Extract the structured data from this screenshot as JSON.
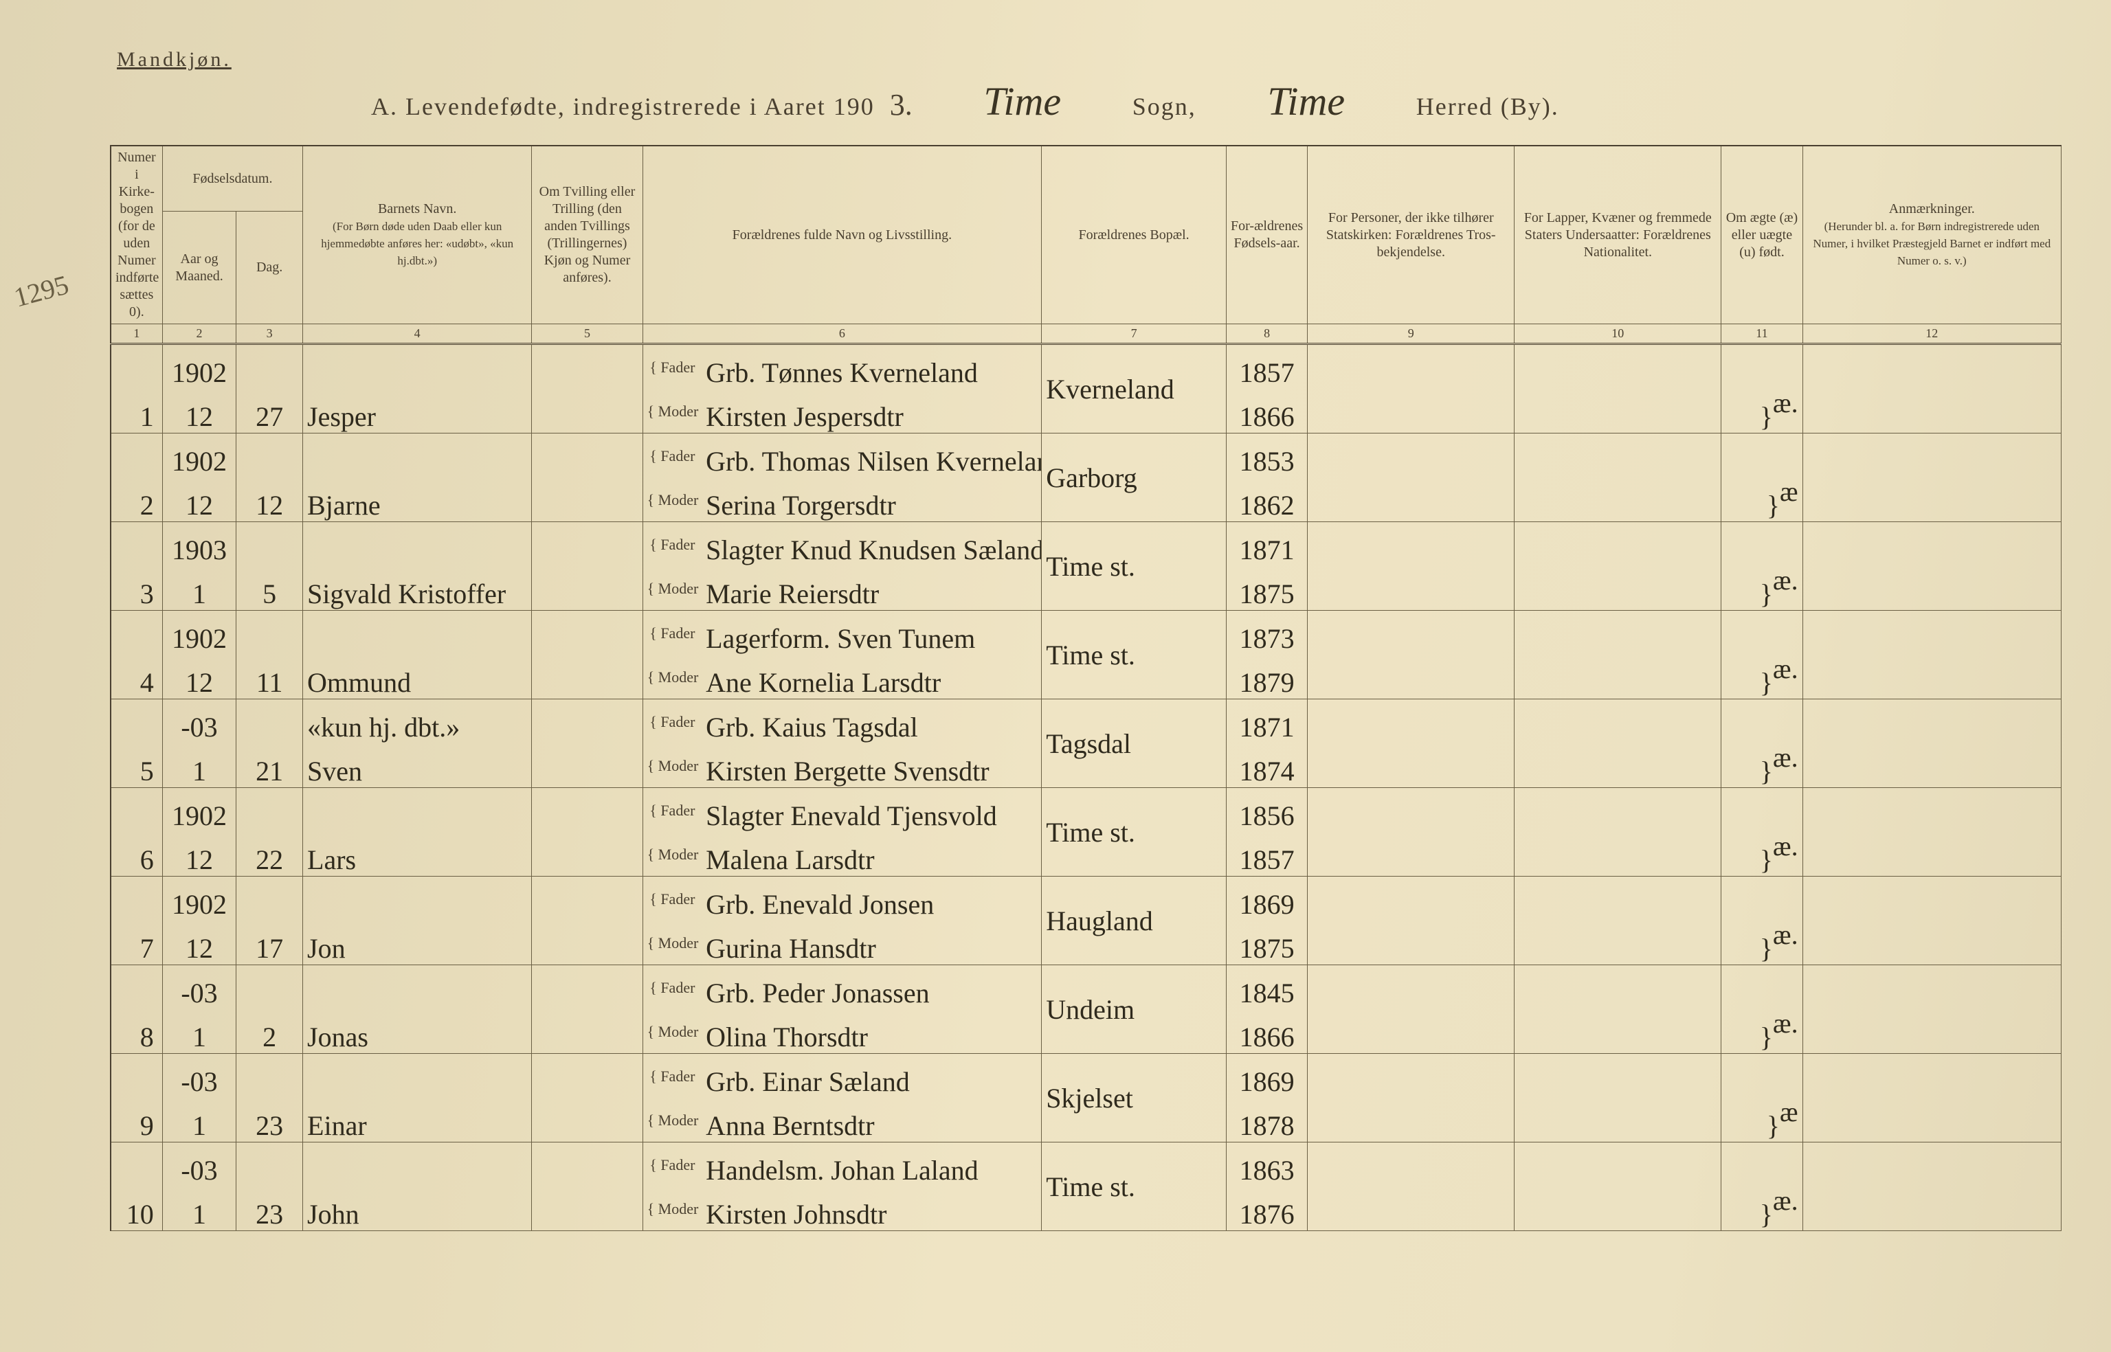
{
  "page": {
    "genderHeading": "Mandkjøn.",
    "titlePrint": "A. Levendefødte, indregistrerede i Aaret 190",
    "year": "3.",
    "sognValue": "Time",
    "sognLabel": "Sogn,",
    "herredValue": "Time",
    "herredLabel": "Herred (By).",
    "marginNote": "1295"
  },
  "columns": {
    "c1": "Numer i Kirke-bogen (for de uden Numer indførte sættes 0).",
    "c2group": "Fødselsdatum.",
    "c2a": "Aar og Maaned.",
    "c2b": "Dag.",
    "c4": "Barnets Navn.",
    "c4sub": "(For Børn døde uden Daab eller kun hjemmedøbte anføres her: «udøbt», «kun hj.dbt.»)",
    "c5": "Om Tvilling eller Trilling (den anden Tvillings (Trillingernes) Kjøn og Numer anføres).",
    "c6": "Forældrenes fulde Navn og Livsstilling.",
    "c7": "Forældrenes Bopæl.",
    "c8": "For-ældrenes Fødsels-aar.",
    "c9": "For Personer, der ikke tilhører Statskirken: Forældrenes Tros-bekjendelse.",
    "c10": "For Lapper, Kvæner og fremmede Staters Undersaatter: Forældrenes Nationalitet.",
    "c11": "Om ægte (æ) eller uægte (u) født.",
    "c12": "Anmærkninger.",
    "c12sub": "(Herunder bl. a. for Børn indregistrerede uden Numer, i hvilket Præstegjeld Barnet er indført med Numer o. s. v.)",
    "faderLabel": "Fader",
    "moderLabel": "Moder",
    "idx": [
      "1",
      "2",
      "3",
      "4",
      "5",
      "6",
      "7",
      "8",
      "9",
      "10",
      "11",
      "12"
    ]
  },
  "rows": [
    {
      "n": "1",
      "yrmo": "1902 / 12",
      "day": "27",
      "name": "Jesper",
      "fader": "Grb. Tønnes Kverneland",
      "moder": "Kirsten Jespersdtr",
      "bopel": "Kverneland",
      "fy": "1857",
      "my": "1866",
      "legit": "æ."
    },
    {
      "n": "2",
      "yrmo": "1902 / 12",
      "day": "12",
      "name": "Bjarne",
      "fader": "Grb. Thomas Nilsen Kverneland",
      "moder": "Serina Torgersdtr",
      "bopel": "Garborg",
      "fy": "1853",
      "my": "1862",
      "legit": "æ"
    },
    {
      "n": "3",
      "yrmo": "1903 / 1",
      "day": "5",
      "name": "Sigvald Kristoffer",
      "fader": "Slagter Knud Knudsen Sæland",
      "moder": "Marie Reiersdtr",
      "bopel": "Time st.",
      "fy": "1871",
      "my": "1875",
      "legit": "æ."
    },
    {
      "n": "4",
      "yrmo": "1902 / 12",
      "day": "11",
      "name": "Ommund",
      "fader": "Lagerform. Sven Tunem",
      "moder": "Ane Kornelia Larsdtr",
      "bopel": "Time st.",
      "fy": "1873",
      "my": "1879",
      "legit": "æ."
    },
    {
      "n": "5",
      "yrmo": "-03 / 1",
      "day": "21",
      "name": "Sven",
      "nameTop": "«kun hj. dbt.»",
      "fader": "Grb. Kaius Tagsdal",
      "moder": "Kirsten Bergette Svensdtr",
      "bopel": "Tagsdal",
      "fy": "1871",
      "my": "1874",
      "legit": "æ."
    },
    {
      "n": "6",
      "yrmo": "1902 / 12",
      "day": "22",
      "name": "Lars",
      "fader": "Slagter Enevald Tjensvold",
      "moder": "Malena Larsdtr",
      "bopel": "Time st.",
      "fy": "1856",
      "my": "1857",
      "legit": "æ."
    },
    {
      "n": "7",
      "yrmo": "1902 / 12",
      "day": "17",
      "name": "Jon",
      "fader": "Grb. Enevald Jonsen",
      "moder": "Gurina Hansdtr",
      "bopel": "Haugland",
      "fy": "1869",
      "my": "1875",
      "legit": "æ."
    },
    {
      "n": "8",
      "yrmo": "-03 / 1",
      "day": "2",
      "name": "Jonas",
      "fader": "Grb. Peder Jonassen",
      "moder": "Olina Thorsdtr",
      "bopel": "Undeim",
      "fy": "1845",
      "my": "1866",
      "legit": "æ."
    },
    {
      "n": "9",
      "yrmo": "-03 / 1",
      "day": "23",
      "name": "Einar",
      "fader": "Grb. Einar Sæland",
      "moder": "Anna Berntsdtr",
      "bopel": "Skjelset",
      "fy": "1869",
      "my": "1878",
      "legit": "æ"
    },
    {
      "n": "10",
      "yrmo": "-03 / 1",
      "day": "23",
      "name": "John",
      "fader": "Handelsm. Johan Laland",
      "moder": "Kirsten Johnsdtr",
      "bopel": "Time st.",
      "fy": "1863",
      "my": "1876",
      "legit": "æ."
    }
  ],
  "style": {
    "pageBg": "#e8ddbb",
    "ink": "#2f2a1d",
    "ruling": "#6a5f44",
    "printedText": "#4a4030",
    "cursiveFont": "Brush Script MT",
    "printedFont": "Georgia",
    "headerFontSize": 20,
    "bodyFontSize": 40
  }
}
